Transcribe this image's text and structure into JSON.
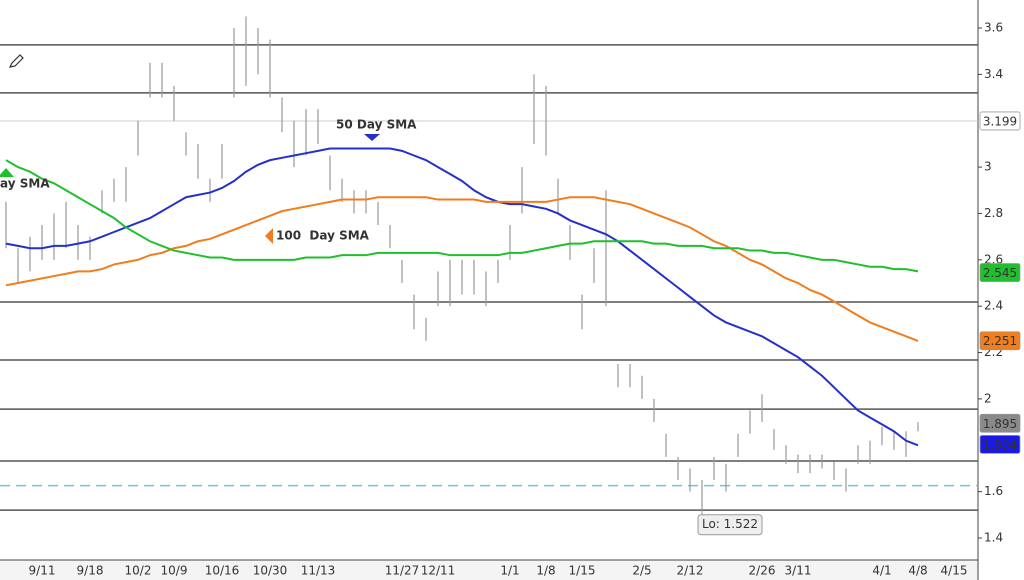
{
  "chart_data": {
    "type": "ohlc",
    "categories": [
      null,
      null,
      null,
      "9/11",
      null,
      null,
      null,
      "9/18",
      null,
      null,
      null,
      "10/2",
      null,
      null,
      "10/9",
      null,
      null,
      null,
      "10/16",
      null,
      null,
      null,
      "10/30",
      null,
      null,
      null,
      "11/13",
      null,
      null,
      null,
      null,
      null,
      null,
      "11/27",
      null,
      null,
      "12/11",
      null,
      null,
      null,
      null,
      null,
      "1/1",
      null,
      null,
      "1/8",
      null,
      null,
      "1/15",
      null,
      null,
      null,
      null,
      "2/5",
      null,
      null,
      null,
      "2/12",
      null,
      null,
      null,
      null,
      null,
      "2/26",
      null,
      null,
      "3/11",
      null,
      null,
      null,
      null,
      null,
      null,
      "4/1",
      null,
      null,
      "4/8",
      null,
      null,
      "4/15"
    ],
    "high": [
      2.85,
      2.65,
      2.7,
      2.75,
      2.8,
      2.85,
      2.75,
      2.7,
      2.9,
      2.95,
      3.0,
      3.2,
      3.45,
      3.45,
      3.35,
      3.15,
      3.1,
      2.95,
      3.1,
      3.6,
      3.65,
      3.6,
      3.55,
      3.3,
      3.2,
      3.25,
      3.25,
      3.05,
      2.95,
      2.9,
      2.9,
      2.85,
      2.75,
      2.6,
      2.45,
      2.35,
      2.55,
      2.6,
      2.6,
      2.6,
      2.55,
      2.6,
      2.75,
      3.0,
      3.4,
      3.35,
      2.95,
      2.75,
      2.45,
      2.65,
      2.9,
      2.15,
      2.15,
      2.1,
      2.0,
      1.85,
      1.75,
      1.7,
      1.65,
      1.75,
      1.72,
      1.85,
      1.95,
      2.02,
      1.87,
      1.8,
      1.76,
      1.76,
      1.76,
      1.73,
      1.7,
      1.8,
      1.82,
      1.88,
      1.86,
      1.86,
      1.9,
      null,
      null,
      null
    ],
    "low": [
      2.65,
      2.5,
      2.55,
      2.6,
      2.6,
      2.65,
      2.6,
      2.6,
      2.8,
      2.85,
      2.85,
      3.05,
      3.3,
      3.3,
      3.2,
      3.05,
      2.95,
      2.85,
      2.95,
      3.3,
      3.35,
      3.4,
      3.3,
      3.15,
      3.0,
      3.05,
      3.1,
      2.9,
      2.85,
      2.8,
      2.8,
      2.75,
      2.65,
      2.5,
      2.3,
      2.25,
      2.4,
      2.4,
      2.45,
      2.45,
      2.4,
      2.5,
      2.6,
      2.8,
      3.1,
      3.05,
      2.8,
      2.6,
      2.3,
      2.5,
      2.4,
      2.05,
      2.05,
      2.0,
      1.9,
      1.75,
      1.65,
      1.6,
      1.522,
      1.65,
      1.6,
      1.75,
      1.85,
      1.9,
      1.78,
      1.72,
      1.68,
      1.68,
      1.7,
      1.65,
      1.6,
      1.72,
      1.72,
      1.8,
      1.78,
      1.75,
      1.86,
      null,
      null,
      null
    ],
    "bar_color": "#9a9a9a",
    "series": [
      {
        "name": "50 Day SMA",
        "color": "#2630c8",
        "values": [
          2.67,
          2.66,
          2.65,
          2.65,
          2.66,
          2.66,
          2.67,
          2.68,
          2.7,
          2.72,
          2.74,
          2.76,
          2.78,
          2.81,
          2.84,
          2.87,
          2.88,
          2.89,
          2.91,
          2.94,
          2.98,
          3.01,
          3.03,
          3.04,
          3.05,
          3.06,
          3.07,
          3.08,
          3.08,
          3.08,
          3.08,
          3.08,
          3.08,
          3.07,
          3.05,
          3.03,
          3.0,
          2.97,
          2.94,
          2.9,
          2.87,
          2.85,
          2.84,
          2.84,
          2.83,
          2.82,
          2.8,
          2.77,
          2.75,
          2.73,
          2.71,
          2.68,
          2.64,
          2.6,
          2.56,
          2.52,
          2.48,
          2.44,
          2.4,
          2.36,
          2.33,
          2.31,
          2.29,
          2.27,
          2.24,
          2.21,
          2.18,
          2.14,
          2.1,
          2.05,
          2.0,
          1.95,
          1.92,
          1.89,
          1.86,
          1.82,
          1.8,
          null,
          null,
          null
        ]
      },
      {
        "name": "100  Day SMA",
        "color": "#f07d1e",
        "values": [
          2.49,
          2.5,
          2.51,
          2.52,
          2.53,
          2.54,
          2.55,
          2.55,
          2.56,
          2.58,
          2.59,
          2.6,
          2.62,
          2.63,
          2.65,
          2.66,
          2.68,
          2.69,
          2.71,
          2.73,
          2.75,
          2.77,
          2.79,
          2.81,
          2.82,
          2.83,
          2.84,
          2.85,
          2.86,
          2.86,
          2.86,
          2.87,
          2.87,
          2.87,
          2.87,
          2.87,
          2.86,
          2.86,
          2.86,
          2.86,
          2.85,
          2.85,
          2.85,
          2.85,
          2.85,
          2.85,
          2.86,
          2.87,
          2.87,
          2.87,
          2.86,
          2.85,
          2.84,
          2.82,
          2.8,
          2.78,
          2.76,
          2.74,
          2.71,
          2.68,
          2.66,
          2.63,
          2.6,
          2.58,
          2.55,
          2.52,
          2.5,
          2.47,
          2.45,
          2.42,
          2.39,
          2.36,
          2.33,
          2.31,
          2.29,
          2.27,
          2.25,
          null,
          null,
          null
        ]
      },
      {
        "name": "ay SMA",
        "color": "#1fbf2e",
        "values": [
          3.03,
          3.0,
          2.98,
          2.95,
          2.93,
          2.9,
          2.87,
          2.84,
          2.81,
          2.78,
          2.74,
          2.71,
          2.68,
          2.66,
          2.64,
          2.63,
          2.62,
          2.61,
          2.61,
          2.6,
          2.6,
          2.6,
          2.6,
          2.6,
          2.6,
          2.61,
          2.61,
          2.61,
          2.62,
          2.62,
          2.62,
          2.63,
          2.63,
          2.63,
          2.63,
          2.63,
          2.63,
          2.62,
          2.62,
          2.62,
          2.62,
          2.62,
          2.63,
          2.63,
          2.64,
          2.65,
          2.66,
          2.67,
          2.67,
          2.68,
          2.68,
          2.68,
          2.68,
          2.68,
          2.67,
          2.67,
          2.66,
          2.66,
          2.66,
          2.65,
          2.65,
          2.65,
          2.64,
          2.64,
          2.63,
          2.63,
          2.62,
          2.61,
          2.6,
          2.6,
          2.59,
          2.58,
          2.57,
          2.57,
          2.56,
          2.56,
          2.55,
          null,
          null,
          null
        ]
      }
    ],
    "ylim": [
      1.4,
      3.6
    ],
    "yticks": [
      1.4,
      1.6,
      2,
      2.2,
      2.4,
      2.6,
      2.8,
      3,
      3.4,
      3.6
    ],
    "hlines": [
      3.527,
      3.32,
      2.418,
      2.168,
      1.956,
      1.732,
      1.52
    ],
    "hline_color": "#555555",
    "dashed_line": {
      "value": 1.626,
      "color": "#6cc4e0"
    },
    "price_tags": [
      {
        "value": 3.199,
        "color": "#ffffff",
        "text_color": "#333333"
      },
      {
        "value": 2.545,
        "color": "#1fbf2e",
        "text_color": "#ffffff"
      },
      {
        "value": 2.251,
        "color": "#f07d1e",
        "text_color": "#ffffff"
      },
      {
        "value": 1.895,
        "color": "#8a8a8a",
        "text_color": "#ffffff"
      },
      {
        "value": 1.804,
        "color": "#1a1ae6",
        "text_color": "#ffffff"
      }
    ],
    "low_label": "Lo: 1.522"
  }
}
